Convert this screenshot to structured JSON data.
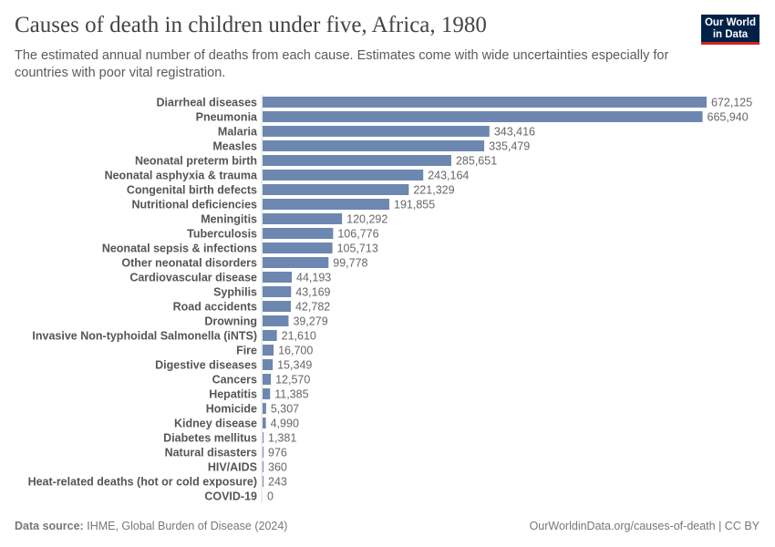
{
  "header": {
    "title": "Causes of death in children under five, Africa, 1980",
    "subtitle": "The estimated annual number of deaths from each cause. Estimates come with wide uncertainties especially for countries with poor vital registration.",
    "logo_text": "Our World in Data"
  },
  "chart_data": {
    "type": "bar",
    "orientation": "horizontal",
    "title": "Causes of death in children under five, Africa, 1980",
    "categories": [
      "Diarrheal diseases",
      "Pneumonia",
      "Malaria",
      "Measles",
      "Neonatal preterm birth",
      "Neonatal asphyxia & trauma",
      "Congenital birth defects",
      "Nutritional deficiencies",
      "Meningitis",
      "Tuberculosis",
      "Neonatal sepsis & infections",
      "Other neonatal disorders",
      "Cardiovascular disease",
      "Syphilis",
      "Road accidents",
      "Drowning",
      "Invasive Non-typhoidal Salmonella (iNTS)",
      "Fire",
      "Digestive diseases",
      "Cancers",
      "Hepatitis",
      "Homicide",
      "Kidney disease",
      "Diabetes mellitus",
      "Natural disasters",
      "HIV/AIDS",
      "Heat-related deaths (hot or cold exposure)",
      "COVID-19"
    ],
    "values": [
      672125,
      665940,
      343416,
      335479,
      285651,
      243164,
      221329,
      191855,
      120292,
      106776,
      105713,
      99778,
      44193,
      43169,
      42782,
      39279,
      21610,
      16700,
      15349,
      12570,
      11385,
      5307,
      4990,
      1381,
      976,
      360,
      243,
      0
    ],
    "bar_color": "#6d87b0",
    "grid": false
  },
  "footer": {
    "source_label": "Data source:",
    "source": "IHME, Global Burden of Disease (2024)",
    "link": "OurWorldinData.org/causes-of-death | CC BY"
  }
}
